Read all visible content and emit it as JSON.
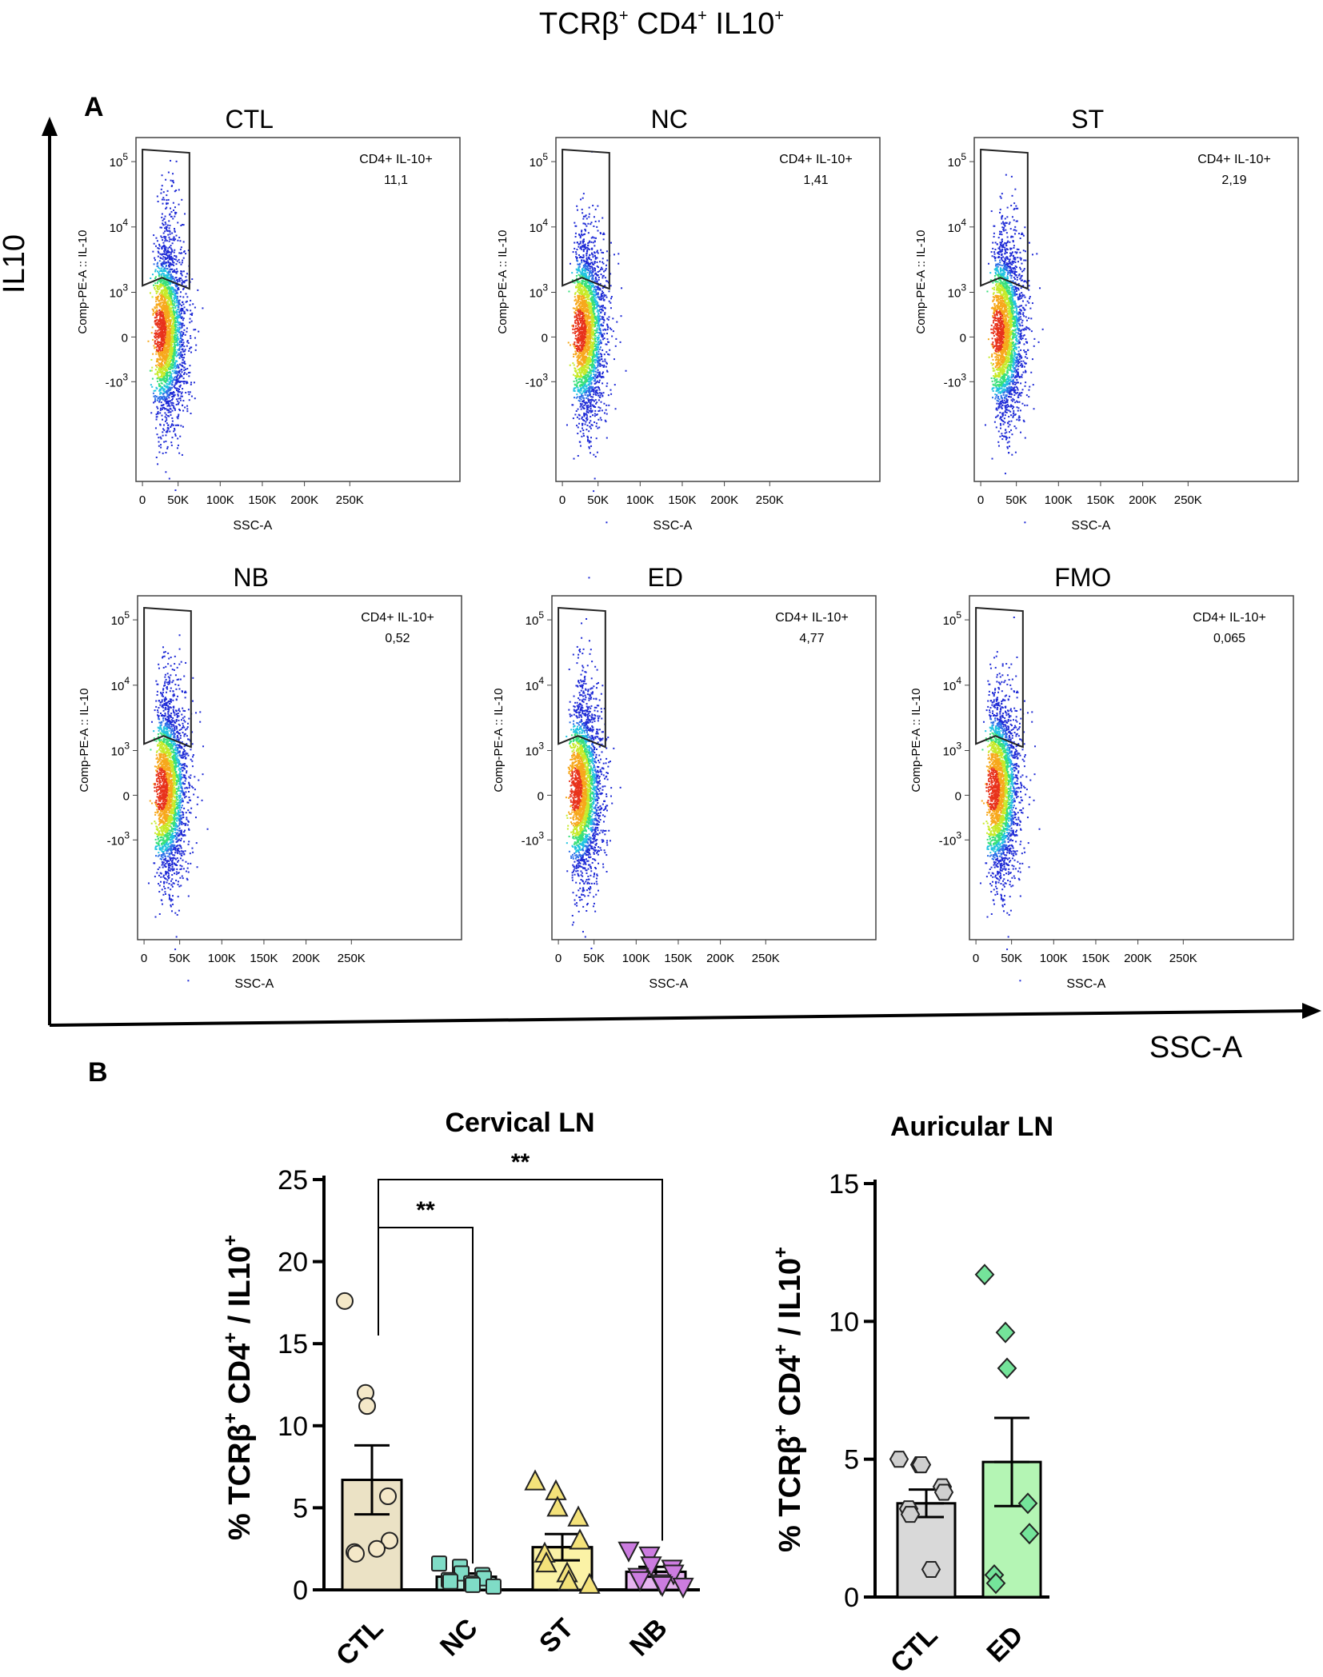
{
  "figure_title": {
    "main": "TCRβ",
    "sup1": "+",
    "mid": " CD4",
    "sup2": "+",
    "end": " IL10",
    "sup3": "+"
  },
  "panel_a": {
    "label": "A",
    "big_axis": {
      "y": "IL10",
      "x": "SSC-A"
    },
    "plot_y_label": "Comp-PE-A :: IL-10",
    "plot_x_label": "SSC-A",
    "x_ticks": [
      "0",
      "50K",
      "100K",
      "150K",
      "200K",
      "250K"
    ],
    "y_ticks": [
      {
        "base": "10",
        "exp": "5"
      },
      {
        "base": "10",
        "exp": "4"
      },
      {
        "base": "10",
        "exp": "3"
      },
      {
        "base": "0",
        "exp": ""
      },
      {
        "base": "-10",
        "exp": "3"
      }
    ],
    "gate_name": "CD4+ IL-10+",
    "plots": [
      {
        "title": "CTL",
        "value": "11,1",
        "gate_density": 0.8
      },
      {
        "title": "NC",
        "value": "1,41",
        "gate_density": 0.12
      },
      {
        "title": "ST",
        "value": "2,19",
        "gate_density": 0.18
      },
      {
        "title": "NB",
        "value": "0,52",
        "gate_density": 0.45
      },
      {
        "title": "ED",
        "value": "4,77",
        "gate_density": 0.5
      },
      {
        "title": "FMO",
        "value": "0,065",
        "gate_density": 0.03
      }
    ]
  },
  "panel_b": {
    "label": "B",
    "y_label": {
      "pre": "% TCRβ",
      "s1": "+",
      "mid": " CD4",
      "s2": "+",
      "mid2": " / IL10",
      "s3": "+"
    },
    "cervical": {
      "title": "Cervical LN",
      "significance": [
        "**",
        "**"
      ]
    },
    "auricular": {
      "title": "Auricular LN"
    }
  },
  "chart_data": [
    {
      "type": "bar",
      "title": "Cervical LN",
      "ylabel": "% TCRβ+ CD4+ / IL10+",
      "ylim": [
        0,
        25
      ],
      "yticks": [
        0,
        5,
        10,
        15,
        20,
        25
      ],
      "categories": [
        "CTL",
        "NC",
        "ST",
        "NB"
      ],
      "means": [
        6.7,
        0.8,
        2.6,
        1.1
      ],
      "sem": [
        2.1,
        0.2,
        0.8,
        0.3
      ],
      "points": [
        [
          17.6,
          12.0,
          11.2,
          5.7,
          3.0,
          2.3,
          2.2,
          2.5
        ],
        [
          1.6,
          1.4,
          1.0,
          0.9,
          0.7,
          0.6,
          0.5,
          0.4,
          0.3,
          0.2
        ],
        [
          6.6,
          6.0,
          5.0,
          4.4,
          3.0,
          2.2,
          1.6,
          1.0,
          0.5,
          0.3
        ],
        [
          2.4,
          2.1,
          1.5,
          1.3,
          1.0,
          0.8,
          0.6,
          0.4,
          0.3,
          0.2
        ]
      ],
      "bar_colors": [
        "#ebe2c5",
        "#b4ecdc",
        "#fbf2a6",
        "#e6b4f0"
      ],
      "point_colors": [
        "#f4e8c8",
        "#7fdcc6",
        "#f4e27a",
        "#cc7ce0"
      ],
      "markers": [
        "circle",
        "square",
        "triangle-up",
        "triangle-down"
      ],
      "comparisons": [
        {
          "from": "CTL",
          "to": "NC",
          "label": "**"
        },
        {
          "from": "CTL",
          "to": "NB",
          "label": "**"
        }
      ]
    },
    {
      "type": "bar",
      "title": "Auricular LN",
      "ylabel": "% TCRβ+ CD4+ / IL10+",
      "ylim": [
        0,
        15
      ],
      "yticks": [
        0,
        5,
        10,
        15
      ],
      "categories": [
        "CTL",
        "ED"
      ],
      "means": [
        3.4,
        4.9
      ],
      "sem": [
        0.5,
        1.6
      ],
      "points": [
        [
          5.0,
          4.8,
          4.8,
          4.0,
          3.8,
          3.2,
          3.0,
          1.0
        ],
        [
          11.7,
          9.6,
          8.3,
          3.4,
          2.3,
          0.8,
          0.5
        ]
      ],
      "bar_colors": [
        "#d9d9d9",
        "#b4f5b4"
      ],
      "point_colors": [
        "#cfcfcf",
        "#74e49a"
      ],
      "markers": [
        "hexagon",
        "diamond"
      ]
    }
  ]
}
